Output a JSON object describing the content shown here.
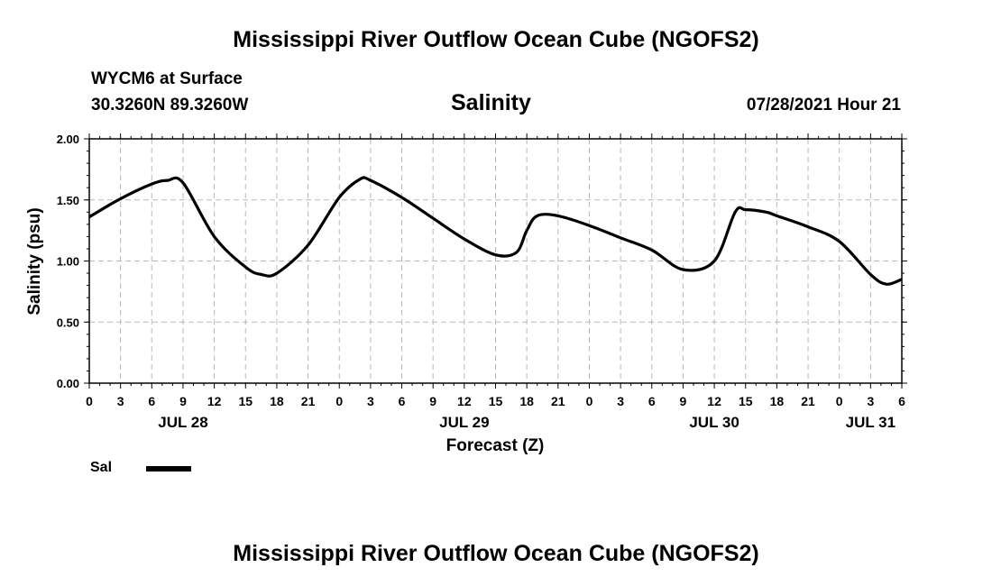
{
  "page_title": "Mississippi River Outflow Ocean Cube (NGOFS2)",
  "footer_title": "Mississippi River Outflow Ocean Cube (NGOFS2)",
  "station": {
    "name_line": "WYCM6 at Surface",
    "coords_line": "30.3260N  89.3260W"
  },
  "variable_title": "Salinity",
  "timestamp": "07/28/2021 Hour 21",
  "legend": {
    "label": "Sal",
    "color": "#000000"
  },
  "chart_data": {
    "type": "line",
    "title": "Salinity",
    "xlabel": "Forecast (Z)",
    "ylabel": "Salinity (psu)",
    "xlim": [
      0,
      78
    ],
    "ylim": [
      0,
      2.0
    ],
    "grid": true,
    "x_tick_hours": [
      0,
      3,
      6,
      9,
      12,
      15,
      18,
      21,
      24,
      27,
      30,
      33,
      36,
      39,
      42,
      45,
      48,
      51,
      54,
      57,
      60,
      63,
      66,
      69,
      72,
      75,
      78
    ],
    "x_tick_labels": [
      "0",
      "3",
      "6",
      "9",
      "12",
      "15",
      "18",
      "21",
      "0",
      "3",
      "6",
      "9",
      "12",
      "15",
      "18",
      "21",
      "0",
      "3",
      "6",
      "9",
      "12",
      "15",
      "18",
      "21",
      "0",
      "3",
      "6"
    ],
    "date_labels": [
      {
        "hour": 9,
        "label": "JUL 28"
      },
      {
        "hour": 36,
        "label": "JUL 29"
      },
      {
        "hour": 60,
        "label": "JUL 30"
      },
      {
        "hour": 75,
        "label": "JUL 31"
      }
    ],
    "y_ticks": [
      0,
      0.5,
      1.0,
      1.5,
      2.0
    ],
    "y_tick_labels": [
      "0.00",
      "0.50",
      "1.00",
      "1.50",
      "2.00"
    ],
    "series": [
      {
        "name": "Sal",
        "x": [
          0,
          3,
          6,
          7.5,
          9,
          12,
          15,
          16.5,
          18,
          21,
          24,
          26,
          27,
          30,
          33,
          36,
          39,
          41,
          42,
          43,
          45,
          48,
          51,
          54,
          57,
          60,
          62,
          63,
          65,
          66,
          69,
          72,
          75,
          76.5,
          78
        ],
        "values": [
          1.36,
          1.51,
          1.63,
          1.66,
          1.64,
          1.2,
          0.95,
          0.89,
          0.9,
          1.13,
          1.52,
          1.67,
          1.66,
          1.52,
          1.35,
          1.18,
          1.05,
          1.07,
          1.25,
          1.37,
          1.37,
          1.29,
          1.19,
          1.09,
          0.93,
          1.0,
          1.4,
          1.42,
          1.4,
          1.37,
          1.28,
          1.16,
          0.89,
          0.81,
          0.85
        ]
      }
    ]
  }
}
